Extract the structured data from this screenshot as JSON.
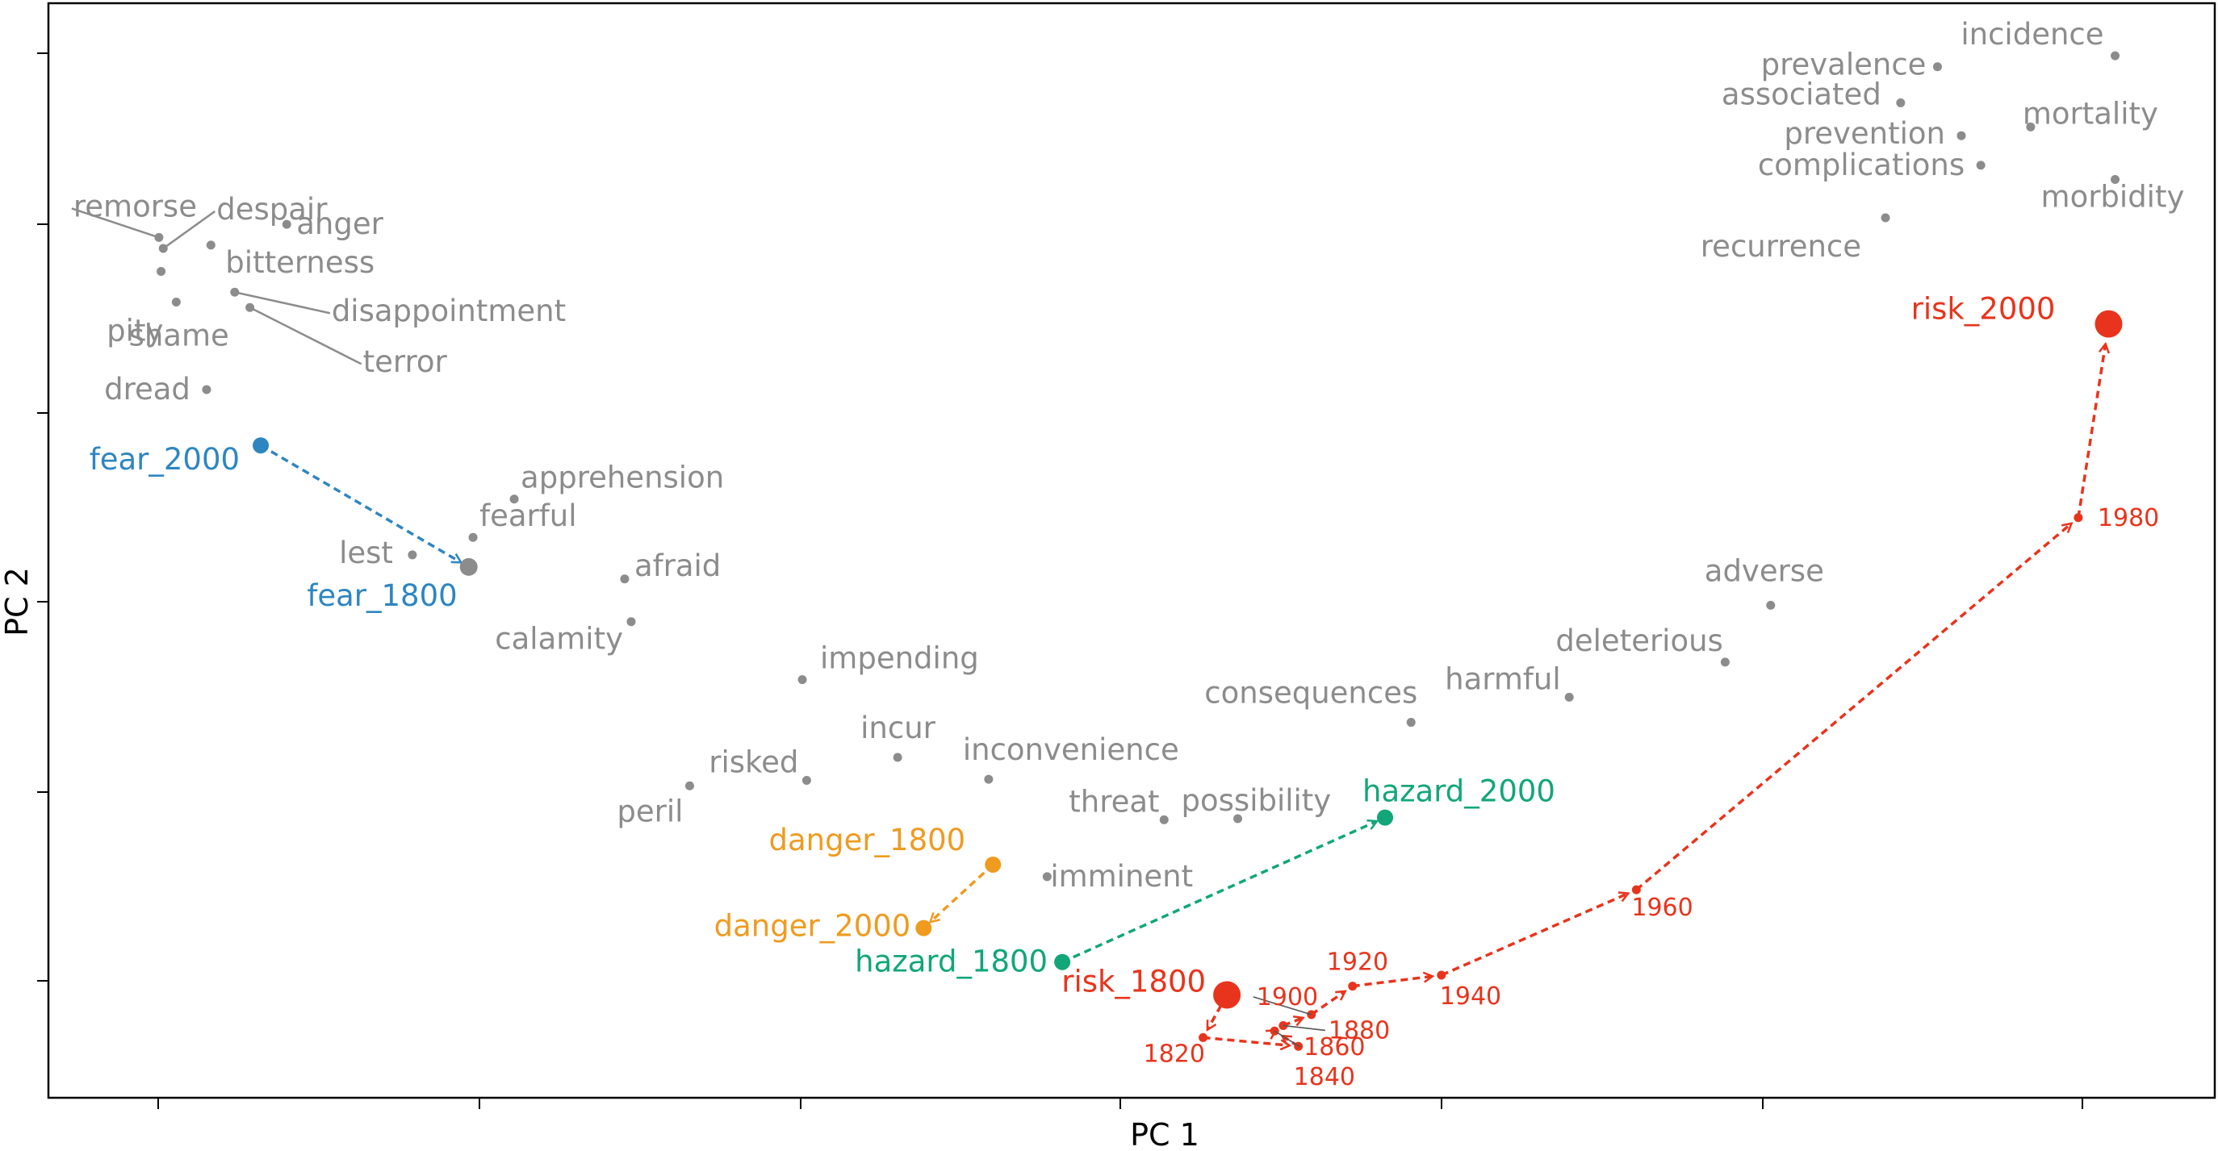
{
  "chart_data": {
    "type": "scatter",
    "title": "",
    "xlabel": "PC 1",
    "ylabel": "PC 2",
    "xlim": [
      0,
      100
    ],
    "ylim": [
      0,
      100
    ],
    "tick_labels_shown": false,
    "grid": false,
    "colors": {
      "neighbor": "#8c8c8c",
      "fear": "#2e86c1",
      "danger": "#ef9b20",
      "hazard": "#12a67a",
      "risk": "#e8341c"
    },
    "neighbor_words": [
      {
        "label": "incidence",
        "x": 95.4,
        "y": 95.2
      },
      {
        "label": "prevalence",
        "x": 87.2,
        "y": 94.2
      },
      {
        "label": "associated",
        "x": 85.5,
        "y": 90.9
      },
      {
        "label": "mortality",
        "x": 91.5,
        "y": 88.7
      },
      {
        "label": "prevention",
        "x": 88.3,
        "y": 87.9
      },
      {
        "label": "complications",
        "x": 89.2,
        "y": 85.2
      },
      {
        "label": "morbidity",
        "x": 95.4,
        "y": 83.9
      },
      {
        "label": "recurrence",
        "x": 84.8,
        "y": 80.4
      },
      {
        "label": "remorse",
        "x": 5.1,
        "y": 78.6
      },
      {
        "label": "despair",
        "x": 5.3,
        "y": 77.6
      },
      {
        "label": "anger",
        "x": 11.0,
        "y": 79.8
      },
      {
        "label": "bitterness",
        "x": 7.5,
        "y": 77.9
      },
      {
        "label": "pity",
        "x": 5.9,
        "y": 72.7
      },
      {
        "label": "disappointment",
        "x": 8.6,
        "y": 73.6
      },
      {
        "label": "terror",
        "x": 9.3,
        "y": 72.2
      },
      {
        "label": "shame",
        "x": 5.2,
        "y": 75.5
      },
      {
        "label": "dread",
        "x": 7.3,
        "y": 64.7
      },
      {
        "label": "apprehension",
        "x": 21.5,
        "y": 54.7
      },
      {
        "label": "fearful",
        "x": 19.6,
        "y": 51.2
      },
      {
        "label": "lest",
        "x": 16.8,
        "y": 49.6
      },
      {
        "label": "afraid",
        "x": 26.6,
        "y": 47.4
      },
      {
        "label": "calamity",
        "x": 26.9,
        "y": 43.5
      },
      {
        "label": "adverse",
        "x": 79.5,
        "y": 45.0
      },
      {
        "label": "deleterious",
        "x": 77.4,
        "y": 39.8
      },
      {
        "label": "harmful",
        "x": 70.2,
        "y": 36.6
      },
      {
        "label": "consequences",
        "x": 62.9,
        "y": 34.3
      },
      {
        "label": "impending",
        "x": 34.8,
        "y": 38.2
      },
      {
        "label": "incur",
        "x": 39.2,
        "y": 31.1
      },
      {
        "label": "inconvenience",
        "x": 43.4,
        "y": 29.1
      },
      {
        "label": "risked",
        "x": 35.0,
        "y": 29.0
      },
      {
        "label": "peril",
        "x": 29.6,
        "y": 28.5
      },
      {
        "label": "threat",
        "x": 51.5,
        "y": 25.4
      },
      {
        "label": "possibility",
        "x": 54.9,
        "y": 25.5
      },
      {
        "label": "imminent",
        "x": 46.1,
        "y": 20.2
      }
    ],
    "series": [
      {
        "name": "fear",
        "points": [
          {
            "label": "fear_2000",
            "x": 9.8,
            "y": 59.6
          },
          {
            "label": "fear_1800",
            "x": 19.4,
            "y": 48.5
          }
        ]
      },
      {
        "name": "danger",
        "points": [
          {
            "label": "danger_1800",
            "x": 43.6,
            "y": 21.3
          },
          {
            "label": "danger_2000",
            "x": 40.4,
            "y": 15.5
          }
        ]
      },
      {
        "name": "hazard",
        "points": [
          {
            "label": "hazard_1800",
            "x": 46.8,
            "y": 12.4
          },
          {
            "label": "hazard_2000",
            "x": 61.7,
            "y": 25.6
          }
        ]
      },
      {
        "name": "risk",
        "points": [
          {
            "label": "risk_1800",
            "x": 54.4,
            "y": 9.4
          },
          {
            "label": "1820",
            "x": 53.3,
            "y": 5.5
          },
          {
            "label": "1840",
            "x": 57.7,
            "y": 4.7
          },
          {
            "label": "1860",
            "x": 56.6,
            "y": 6.1
          },
          {
            "label": "1880",
            "x": 57.0,
            "y": 6.6
          },
          {
            "label": "1900",
            "x": 58.3,
            "y": 7.6
          },
          {
            "label": "1920",
            "x": 60.2,
            "y": 10.2
          },
          {
            "label": "1940",
            "x": 64.3,
            "y": 11.2
          },
          {
            "label": "1960",
            "x": 73.3,
            "y": 19.0
          },
          {
            "label": "1980",
            "x": 93.7,
            "y": 53.0
          },
          {
            "label": "risk_2000",
            "x": 95.1,
            "y": 70.7
          }
        ]
      }
    ]
  }
}
